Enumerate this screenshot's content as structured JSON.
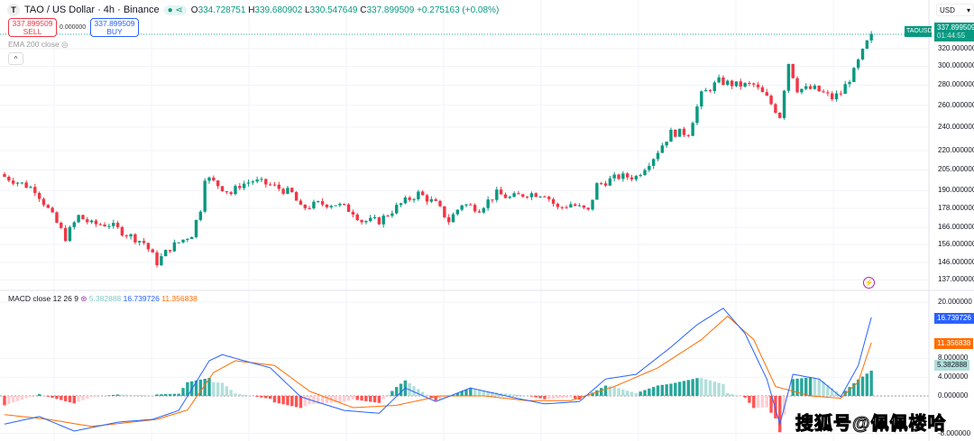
{
  "header": {
    "symbol_icon": "T",
    "title": "TAO / US Dollar · 4h · Binance",
    "open_label": "O",
    "open": "334.728751",
    "high_label": "H",
    "high": "339.680902",
    "low_label": "L",
    "low": "330.547649",
    "close_label": "C",
    "close": "337.899509",
    "change": "+0.275163 (+0.08%)"
  },
  "trade": {
    "sell_price": "337.899509",
    "sell_label": "SELL",
    "spread": "0.000000",
    "buy_price": "337.899509",
    "buy_label": "BUY"
  },
  "ema_label": "EMA 200 close",
  "collapse_icon": "^",
  "currency": "USD",
  "price_tag": {
    "symbol": "TAOUSD",
    "price": "337.899509",
    "countdown": "01:44:55"
  },
  "macd_legend": {
    "name": "MACD close 12 26 9",
    "hist": "5.382888",
    "macd": "16.739726",
    "signal": "11.356838"
  },
  "watermark": "搜狐号@佩佩楼哈",
  "colors": {
    "up": "#089981",
    "down": "#f23645",
    "macd": "#2962ff",
    "signal": "#ff6d00",
    "hist_up": "#26a69a",
    "hist_up_light": "#b2dfdb",
    "hist_down": "#ff5252",
    "hist_down_light": "#ffcdd2"
  },
  "chart_data": [
    {
      "type": "candlestick",
      "title": "TAO / US Dollar · 4h · Binance",
      "scale": "log",
      "candles": 200,
      "yticks": [
        "320.000000",
        "300.000000",
        "280.000000",
        "260.000000",
        "240.000000",
        "220.000000",
        "205.000000",
        "190.000000",
        "178.000000",
        "166.000000",
        "156.000000",
        "146.000000",
        "137.000000"
      ],
      "close_path": [
        [
          0,
          200
        ],
        [
          7,
          191
        ],
        [
          11,
          173
        ],
        [
          14,
          160
        ],
        [
          17,
          173
        ],
        [
          20,
          168
        ],
        [
          24,
          168
        ],
        [
          28,
          162
        ],
        [
          32,
          157
        ],
        [
          35,
          146
        ],
        [
          38,
          154
        ],
        [
          43,
          162
        ],
        [
          45,
          178
        ],
        [
          46,
          200
        ],
        [
          49,
          194
        ],
        [
          52,
          188
        ],
        [
          54,
          194
        ],
        [
          57,
          197
        ],
        [
          61,
          194
        ],
        [
          66,
          188
        ],
        [
          68,
          178
        ],
        [
          72,
          181
        ],
        [
          76,
          181
        ],
        [
          80,
          176
        ],
        [
          82,
          170
        ],
        [
          86,
          170
        ],
        [
          91,
          181
        ],
        [
          95,
          188
        ],
        [
          99,
          181
        ],
        [
          102,
          170
        ],
        [
          105,
          181
        ],
        [
          109,
          178
        ],
        [
          113,
          188
        ],
        [
          116,
          185
        ],
        [
          120,
          188
        ],
        [
          124,
          188
        ],
        [
          127,
          178
        ],
        [
          130,
          181
        ],
        [
          134,
          176
        ],
        [
          136,
          194
        ],
        [
          141,
          200
        ],
        [
          145,
          200
        ],
        [
          149,
          215
        ],
        [
          153,
          235
        ],
        [
          157,
          235
        ],
        [
          160,
          270
        ],
        [
          164,
          284
        ],
        [
          168,
          280
        ],
        [
          172,
          280
        ],
        [
          175,
          267
        ],
        [
          178,
          250
        ],
        [
          180,
          304
        ],
        [
          182,
          276
        ],
        [
          186,
          276
        ],
        [
          190,
          267
        ],
        [
          192,
          272
        ],
        [
          195,
          294
        ],
        [
          197,
          316
        ],
        [
          199,
          337.9
        ]
      ]
    },
    {
      "type": "line",
      "title": "MACD close 12 26 9",
      "yticks": [
        "20.000000",
        "8.000000",
        "4.000000",
        "0.000000",
        "-8.000000"
      ],
      "macd_path": [
        [
          0,
          -6
        ],
        [
          8,
          -4.4
        ],
        [
          16,
          -7.5
        ],
        [
          26,
          -5.6
        ],
        [
          34,
          -5
        ],
        [
          40,
          -3.1
        ],
        [
          47,
          7.5
        ],
        [
          50,
          8.8
        ],
        [
          55,
          7.5
        ],
        [
          61,
          6
        ],
        [
          68,
          -0.2
        ],
        [
          78,
          -3.1
        ],
        [
          86,
          -3.7
        ],
        [
          92,
          1.7
        ],
        [
          99,
          -1.2
        ],
        [
          107,
          1.7
        ],
        [
          116,
          -0.2
        ],
        [
          124,
          -1.7
        ],
        [
          132,
          -1.2
        ],
        [
          138,
          3.6
        ],
        [
          145,
          4.6
        ],
        [
          153,
          10.4
        ],
        [
          159,
          15.2
        ],
        [
          165,
          18.7
        ],
        [
          170,
          13.3
        ],
        [
          175,
          3.6
        ],
        [
          178,
          -6
        ],
        [
          181,
          4.6
        ],
        [
          187,
          3.6
        ],
        [
          192,
          -0.2
        ],
        [
          196,
          6.5
        ],
        [
          199,
          16.74
        ]
      ],
      "signal_path": [
        [
          0,
          -4
        ],
        [
          10,
          -5
        ],
        [
          20,
          -6.5
        ],
        [
          35,
          -5
        ],
        [
          42,
          -3
        ],
        [
          48,
          5
        ],
        [
          53,
          7.5
        ],
        [
          62,
          6.5
        ],
        [
          70,
          1
        ],
        [
          80,
          -2.5
        ],
        [
          90,
          -2
        ],
        [
          100,
          0
        ],
        [
          110,
          0
        ],
        [
          120,
          -1
        ],
        [
          130,
          -1
        ],
        [
          140,
          2
        ],
        [
          150,
          6
        ],
        [
          160,
          12
        ],
        [
          166,
          17
        ],
        [
          172,
          12
        ],
        [
          177,
          2
        ],
        [
          185,
          0
        ],
        [
          192,
          -0.5
        ],
        [
          196,
          3
        ],
        [
          199,
          11.36
        ]
      ]
    }
  ]
}
